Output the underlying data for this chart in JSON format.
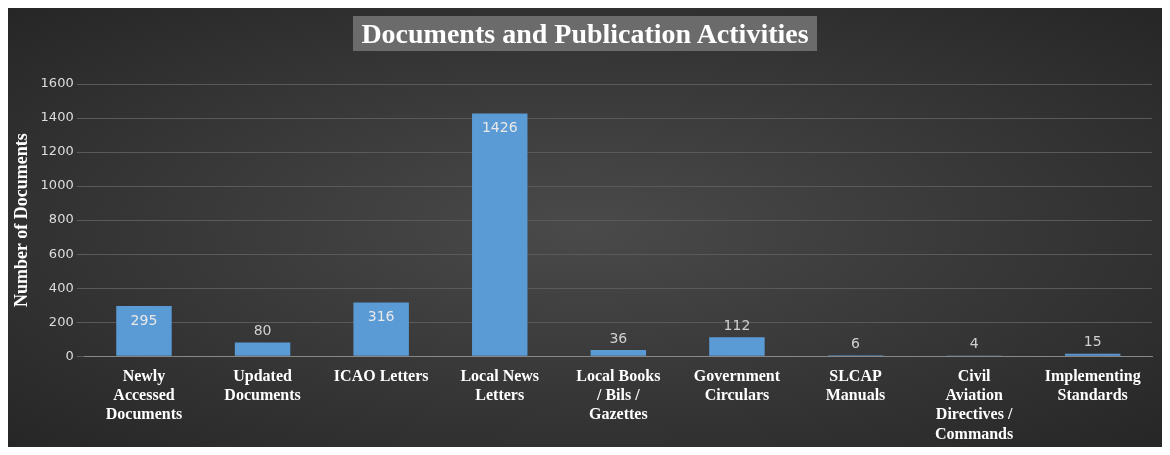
{
  "chart_data": {
    "type": "bar",
    "title": "Documents and Publication Activities",
    "ylabel": "Number of Documents",
    "categories": [
      "Newly Accessed Documents",
      "Updated Documents",
      "ICAO Letters",
      "Local News Letters",
      "Local Books / Bils / Gazettes",
      "Government Circulars",
      "SLCAP Manuals",
      "Civil Aviation Directives / Commands",
      "Implementing Standards"
    ],
    "values": [
      295,
      80,
      316,
      1426,
      36,
      112,
      6,
      4,
      15
    ],
    "color": "#5b9bd5",
    "ylim": [
      0,
      1600
    ],
    "yticks": [
      0,
      200,
      400,
      600,
      800,
      1000,
      1200,
      1400,
      1600
    ],
    "grid": "y",
    "data_labels": true,
    "legend": false
  }
}
